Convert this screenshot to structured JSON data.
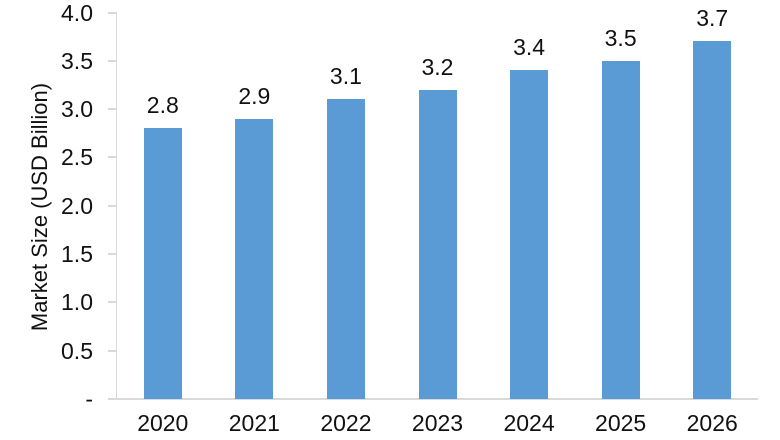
{
  "chart_data": {
    "type": "bar",
    "title": "",
    "categories": [
      "2020",
      "2021",
      "2022",
      "2023",
      "2024",
      "2025",
      "2026"
    ],
    "values": [
      2.8,
      2.9,
      3.1,
      3.2,
      3.4,
      3.5,
      3.7
    ],
    "data_labels": [
      "2.8",
      "2.9",
      "3.1",
      "3.2",
      "3.4",
      "3.5",
      "3.7"
    ],
    "xlabel": "",
    "ylabel": "Market Size (USD Billion)",
    "ylim": [
      0,
      4
    ],
    "ytick_step": 0.5,
    "yticks": [
      {
        "value": 0,
        "label": "-"
      },
      {
        "value": 0.5,
        "label": "0.5"
      },
      {
        "value": 1,
        "label": "1.0"
      },
      {
        "value": 1.5,
        "label": "1.5"
      },
      {
        "value": 2,
        "label": "2.0"
      },
      {
        "value": 2.5,
        "label": "2.5"
      },
      {
        "value": 3,
        "label": "3.0"
      },
      {
        "value": 3.5,
        "label": "3.5"
      },
      {
        "value": 4,
        "label": "4.0"
      }
    ],
    "grid": false,
    "legend": "none",
    "colors": {
      "bar": "#5B9BD5",
      "axis": "#D9D9D9",
      "text": "#111111",
      "background": "#FFFFFF"
    }
  }
}
